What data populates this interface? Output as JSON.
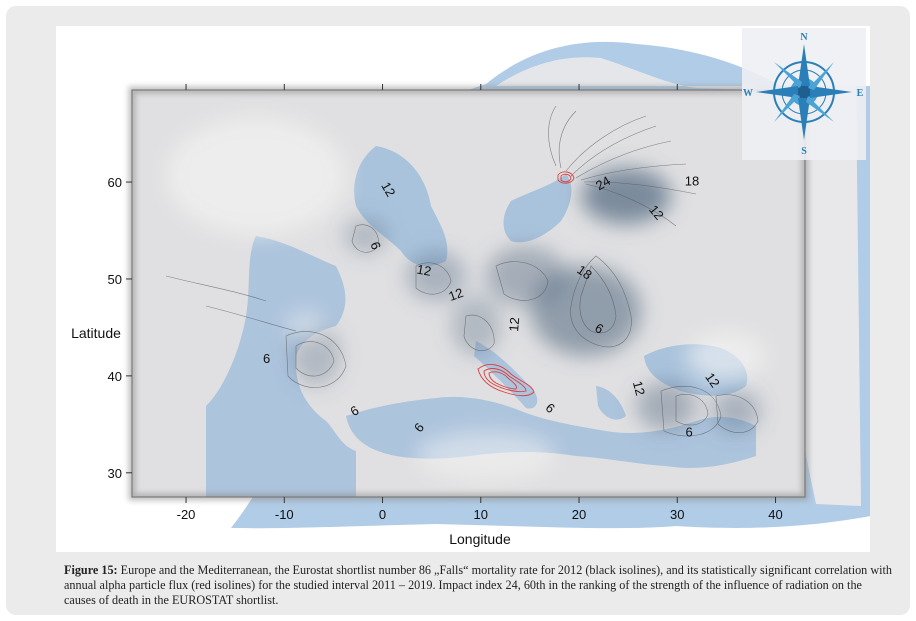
{
  "axes": {
    "x_title": "Longitude",
    "y_title": "Latitude",
    "x_ticks": [
      "-20",
      "-10",
      "0",
      "10",
      "20",
      "30",
      "40"
    ],
    "y_ticks": [
      "30",
      "40",
      "50",
      "60"
    ],
    "x_range": [
      -25.5,
      43
    ],
    "y_range": [
      27.5,
      69.5
    ]
  },
  "isolines": [
    {
      "text": "12",
      "lon": 0.5,
      "lat": 59.2,
      "rot": 60
    },
    {
      "text": "6",
      "lon": -0.8,
      "lat": 53.4,
      "rot": 70
    },
    {
      "text": "24",
      "lon": 22.5,
      "lat": 59.8,
      "rot": -30
    },
    {
      "text": "18",
      "lon": 31.5,
      "lat": 60.0,
      "rot": 0
    },
    {
      "text": "12",
      "lon": 27.8,
      "lat": 56.8,
      "rot": 50
    },
    {
      "text": "12",
      "lon": 4.2,
      "lat": 50.8,
      "rot": 10
    },
    {
      "text": "18",
      "lon": 20.5,
      "lat": 50.6,
      "rot": 35
    },
    {
      "text": "12",
      "lon": 7.5,
      "lat": 48.3,
      "rot": -20
    },
    {
      "text": "12",
      "lon": 13.5,
      "lat": 45.3,
      "rot": -85
    },
    {
      "text": "6",
      "lon": 22.0,
      "lat": 44.8,
      "rot": 30
    },
    {
      "text": "6",
      "lon": -11.8,
      "lat": 41.7,
      "rot": 0
    },
    {
      "text": "12",
      "lon": 26.0,
      "lat": 38.7,
      "rot": 75
    },
    {
      "text": "12",
      "lon": 33.5,
      "lat": 39.5,
      "rot": 55
    },
    {
      "text": "6",
      "lon": -2.8,
      "lat": 36.3,
      "rot": -30
    },
    {
      "text": "6",
      "lon": 17.0,
      "lat": 36.6,
      "rot": 40
    },
    {
      "text": "6",
      "lon": 3.8,
      "lat": 34.6,
      "rot": -50
    },
    {
      "text": "6",
      "lon": 31.2,
      "lat": 34.1,
      "rot": 0
    }
  ],
  "compass": {
    "n": "N",
    "e": "E",
    "s": "S",
    "w": "W"
  },
  "colors": {
    "sea": "#a9c6e3",
    "land": "#e2e2e2",
    "accent": "#2b7fb8",
    "red_isoline": "#d9403f"
  },
  "caption": {
    "label": "Figure 15:",
    "text": " Europe and the Mediterranean, the Eurostat shortlist number 86 „Falls“ mortality rate for 2012 (black isolines), and its statistically significant correlation with annual alpha particle flux (red isolines) for the studied interval 2011 – 2019. Impact index 24, 60th in the ranking of the strength of the influence of radiation on the causes of death in the EUROSTAT shortlist."
  }
}
